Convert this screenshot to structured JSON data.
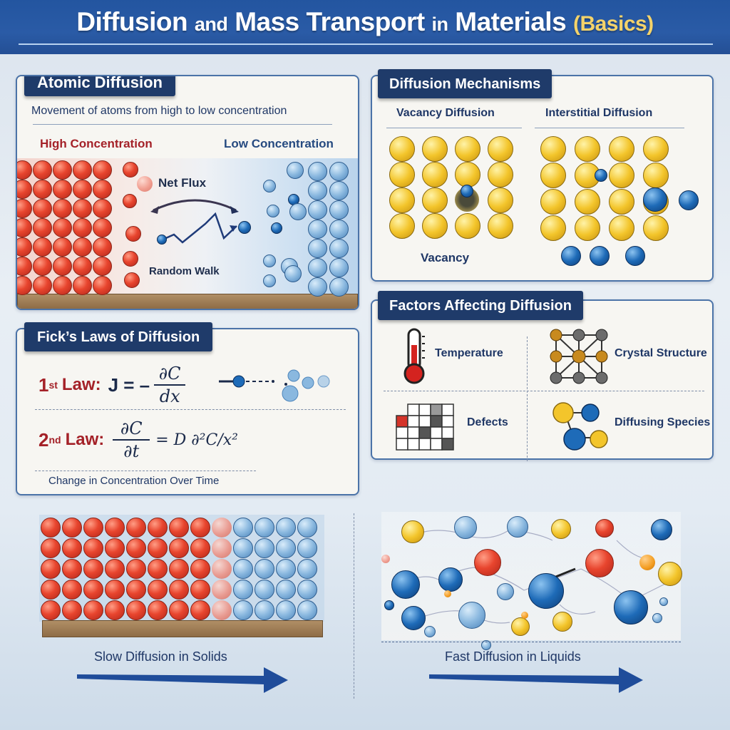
{
  "header": {
    "title_part1": "Diffusion",
    "title_part2": "and",
    "title_part3": "Mass Transport",
    "title_part4": "in",
    "title_part5": "Materials",
    "title_badge": "(Basics)"
  },
  "atomic_diffusion": {
    "title": "Atomic Diffusion",
    "subtitle": "Movement of atoms from high to low concentration",
    "high_label": "High Concentration",
    "low_label": "Low Concentration",
    "flux_label": "Net Flux",
    "walk_label": "Random Walk"
  },
  "mechanisms": {
    "title": "Diffusion Mechanisms",
    "vacancy_title": "Vacancy Diffusion",
    "interstitial_title": "Interstitial Diffusion",
    "vacancy_label": "Vacancy"
  },
  "ficks": {
    "title": "Fick’s Laws of Diffusion",
    "law1_num": "1",
    "law1_sup": "st",
    "law1_word": "Law:",
    "law1_lhs": "J = –",
    "law1_num_frac": "∂C",
    "law1_den_frac": "dx",
    "law2_num": "2",
    "law2_sup": "nd",
    "law2_word": "Law:",
    "law2_num_frac": "∂C",
    "law2_den_frac": "∂t",
    "law2_rhs": "= D ∂²C/x²",
    "caption": "Change in Concentration Over Time"
  },
  "factors": {
    "title": "Factors Affecting Diffusion",
    "items": [
      {
        "label": "Temperature",
        "icon": "thermometer-icon"
      },
      {
        "label": "Crystal Structure",
        "icon": "crystal-lattice-icon"
      },
      {
        "label": "Defects",
        "icon": "defect-grid-icon"
      },
      {
        "label": "Diffusing Species",
        "icon": "molecule-icon"
      }
    ]
  },
  "comparison": {
    "solids_label": "Slow Diffusion in Solids",
    "liquids_label": "Fast Diffusion in Liquids"
  },
  "colors": {
    "header_bg": "#2a5ba6",
    "title_tab": "#1f3b6a",
    "accent_yellow": "#f4d36a",
    "high_red": "#e8452e",
    "low_blue": "#8ab8df",
    "lattice_yellow": "#f3c52b",
    "law_red": "#a42128",
    "arrow_blue": "#1f4c9a"
  }
}
